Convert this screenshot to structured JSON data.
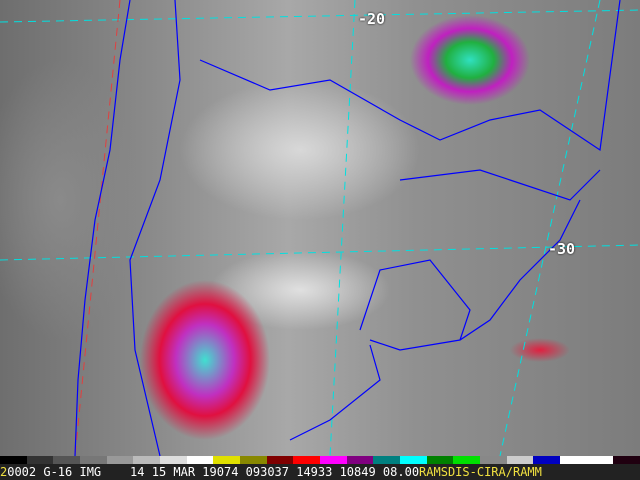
{
  "map": {
    "latitude_labels": [
      "-20",
      "-30"
    ],
    "colors": {
      "coastline": "#0000ff",
      "grid_cyan": "#00e0e0",
      "grid_red": "#e04040"
    }
  },
  "colorbar": {
    "colors": [
      "#000000",
      "#333333",
      "#555555",
      "#777777",
      "#999999",
      "#bbbbbb",
      "#dddddd",
      "#ffffff",
      "#e0e000",
      "#888800",
      "#800000",
      "#ff0000",
      "#ff00ff",
      "#800080",
      "#008080",
      "#00ffff",
      "#008000",
      "#00e000",
      "#888888",
      "#cccccc",
      "#0000c0",
      "#ffffff",
      "#ffffff",
      "#200010"
    ]
  },
  "status": {
    "frame": "2",
    "text": "0002 G-16 IMG    14 15 MAR 19074 093037 14933 10849 08.00",
    "credit": "RAMSDIS-CIRA/RAMM"
  }
}
